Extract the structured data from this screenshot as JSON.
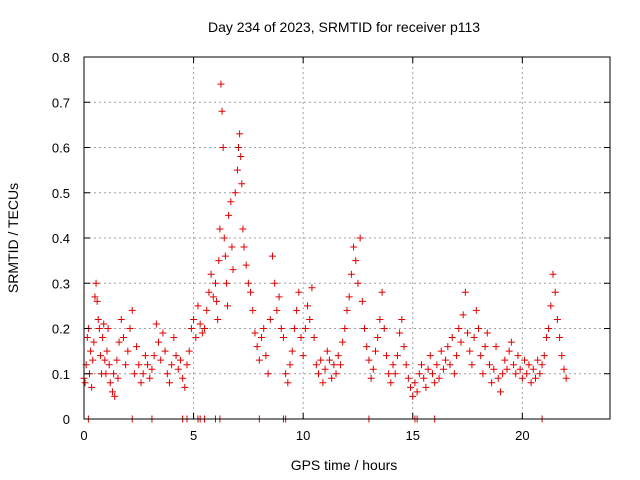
{
  "chart_data": {
    "type": "scatter",
    "title": "Day 234 of 2023, SRMTID for receiver p113",
    "xlabel": "GPS time / hours",
    "ylabel": "SRMTID / TECUs",
    "xlim": [
      0,
      24
    ],
    "ylim": [
      0,
      0.8
    ],
    "xticks": [
      0,
      5,
      10,
      15,
      20
    ],
    "yticks": [
      0,
      0.1,
      0.2,
      0.3,
      0.4,
      0.5,
      0.6,
      0.7,
      0.8
    ],
    "xtick_labels": [
      "0",
      "5",
      "10",
      "15",
      "20"
    ],
    "ytick_labels": [
      "0",
      "0.1",
      "0.2",
      "0.3",
      "0.4",
      "0.5",
      "0.6",
      "0.7",
      "0.8"
    ],
    "grid": true,
    "marker": "+",
    "color": "#e00000",
    "series": [
      {
        "name": "SRMTID",
        "points": [
          [
            0.0,
            0.09
          ],
          [
            0.05,
            0.08
          ],
          [
            0.1,
            0.12
          ],
          [
            0.15,
            0.18
          ],
          [
            0.2,
            0.2
          ],
          [
            0.25,
            0.1
          ],
          [
            0.3,
            0.15
          ],
          [
            0.35,
            0.07
          ],
          [
            0.4,
            0.13
          ],
          [
            0.45,
            0.17
          ],
          [
            0.5,
            0.27
          ],
          [
            0.55,
            0.3
          ],
          [
            0.6,
            0.26
          ],
          [
            0.65,
            0.22
          ],
          [
            0.7,
            0.2
          ],
          [
            0.75,
            0.14
          ],
          [
            0.8,
            0.1
          ],
          [
            0.85,
            0.18
          ],
          [
            0.9,
            0.21
          ],
          [
            0.95,
            0.13
          ],
          [
            1.0,
            0.1
          ],
          [
            1.05,
            0.15
          ],
          [
            1.1,
            0.2
          ],
          [
            1.15,
            0.12
          ],
          [
            1.2,
            0.08
          ],
          [
            1.3,
            0.06
          ],
          [
            1.35,
            0.1
          ],
          [
            1.4,
            0.05
          ],
          [
            1.5,
            0.13
          ],
          [
            1.55,
            0.09
          ],
          [
            1.6,
            0.17
          ],
          [
            1.7,
            0.22
          ],
          [
            1.8,
            0.18
          ],
          [
            1.9,
            0.12
          ],
          [
            2.0,
            0.15
          ],
          [
            2.1,
            0.2
          ],
          [
            2.2,
            0.24
          ],
          [
            2.3,
            0.1
          ],
          [
            2.4,
            0.16
          ],
          [
            2.5,
            0.12
          ],
          [
            2.6,
            0.08
          ],
          [
            2.7,
            0.1
          ],
          [
            2.8,
            0.14
          ],
          [
            2.9,
            0.12
          ],
          [
            3.0,
            0.09
          ],
          [
            3.1,
            0.11
          ],
          [
            3.2,
            0.14
          ],
          [
            3.3,
            0.21
          ],
          [
            3.4,
            0.17
          ],
          [
            3.5,
            0.13
          ],
          [
            3.6,
            0.19
          ],
          [
            3.7,
            0.15
          ],
          [
            3.8,
            0.1
          ],
          [
            3.9,
            0.08
          ],
          [
            4.0,
            0.12
          ],
          [
            4.1,
            0.18
          ],
          [
            4.2,
            0.14
          ],
          [
            4.3,
            0.11
          ],
          [
            4.4,
            0.13
          ],
          [
            4.5,
            0.09
          ],
          [
            4.6,
            0.07
          ],
          [
            4.7,
            0.12
          ],
          [
            4.8,
            0.15
          ],
          [
            4.9,
            0.2
          ],
          [
            5.0,
            0.22
          ],
          [
            5.1,
            0.18
          ],
          [
            5.2,
            0.25
          ],
          [
            5.3,
            0.21
          ],
          [
            5.4,
            0.19
          ],
          [
            5.5,
            0.2
          ],
          [
            5.6,
            0.24
          ],
          [
            5.7,
            0.28
          ],
          [
            5.8,
            0.32
          ],
          [
            5.9,
            0.27
          ],
          [
            6.0,
            0.3
          ],
          [
            6.05,
            0.26
          ],
          [
            6.1,
            0.22
          ],
          [
            6.15,
            0.35
          ],
          [
            6.2,
            0.42
          ],
          [
            6.25,
            0.74
          ],
          [
            6.3,
            0.68
          ],
          [
            6.35,
            0.6
          ],
          [
            6.4,
            0.4
          ],
          [
            6.45,
            0.36
          ],
          [
            6.5,
            0.3
          ],
          [
            6.55,
            0.25
          ],
          [
            6.6,
            0.45
          ],
          [
            6.7,
            0.48
          ],
          [
            6.75,
            0.38
          ],
          [
            6.8,
            0.33
          ],
          [
            6.9,
            0.5
          ],
          [
            7.0,
            0.55
          ],
          [
            7.05,
            0.6
          ],
          [
            7.1,
            0.63
          ],
          [
            7.15,
            0.58
          ],
          [
            7.2,
            0.52
          ],
          [
            7.25,
            0.42
          ],
          [
            7.3,
            0.38
          ],
          [
            7.4,
            0.34
          ],
          [
            7.5,
            0.3
          ],
          [
            7.6,
            0.28
          ],
          [
            7.7,
            0.24
          ],
          [
            7.8,
            0.19
          ],
          [
            7.9,
            0.16
          ],
          [
            8.0,
            0.13
          ],
          [
            8.1,
            0.18
          ],
          [
            8.2,
            0.2
          ],
          [
            8.3,
            0.14
          ],
          [
            8.4,
            0.1
          ],
          [
            8.5,
            0.22
          ],
          [
            8.6,
            0.36
          ],
          [
            8.7,
            0.3
          ],
          [
            8.8,
            0.24
          ],
          [
            8.9,
            0.27
          ],
          [
            9.0,
            0.2
          ],
          [
            9.1,
            0.18
          ],
          [
            9.2,
            0.1
          ],
          [
            9.3,
            0.08
          ],
          [
            9.4,
            0.12
          ],
          [
            9.5,
            0.15
          ],
          [
            9.6,
            0.2
          ],
          [
            9.7,
            0.24
          ],
          [
            9.8,
            0.28
          ],
          [
            9.9,
            0.18
          ],
          [
            10.0,
            0.14
          ],
          [
            10.1,
            0.2
          ],
          [
            10.2,
            0.25
          ],
          [
            10.3,
            0.22
          ],
          [
            10.4,
            0.29
          ],
          [
            10.5,
            0.18
          ],
          [
            10.6,
            0.12
          ],
          [
            10.7,
            0.1
          ],
          [
            10.8,
            0.13
          ],
          [
            10.9,
            0.08
          ],
          [
            11.0,
            0.11
          ],
          [
            11.1,
            0.15
          ],
          [
            11.2,
            0.13
          ],
          [
            11.3,
            0.09
          ],
          [
            11.4,
            0.12
          ],
          [
            11.5,
            0.1
          ],
          [
            11.6,
            0.14
          ],
          [
            11.7,
            0.12
          ],
          [
            11.8,
            0.17
          ],
          [
            11.9,
            0.2
          ],
          [
            12.0,
            0.24
          ],
          [
            12.1,
            0.27
          ],
          [
            12.2,
            0.32
          ],
          [
            12.3,
            0.38
          ],
          [
            12.4,
            0.35
          ],
          [
            12.5,
            0.3
          ],
          [
            12.6,
            0.4
          ],
          [
            12.7,
            0.26
          ],
          [
            12.8,
            0.2
          ],
          [
            12.9,
            0.16
          ],
          [
            13.0,
            0.13
          ],
          [
            13.1,
            0.09
          ],
          [
            13.2,
            0.11
          ],
          [
            13.3,
            0.15
          ],
          [
            13.4,
            0.18
          ],
          [
            13.5,
            0.22
          ],
          [
            13.6,
            0.28
          ],
          [
            13.7,
            0.2
          ],
          [
            13.8,
            0.14
          ],
          [
            13.9,
            0.1
          ],
          [
            14.0,
            0.08
          ],
          [
            14.1,
            0.12
          ],
          [
            14.2,
            0.1
          ],
          [
            14.3,
            0.14
          ],
          [
            14.4,
            0.19
          ],
          [
            14.5,
            0.22
          ],
          [
            14.6,
            0.16
          ],
          [
            14.7,
            0.12
          ],
          [
            14.8,
            0.09
          ],
          [
            14.9,
            0.07
          ],
          [
            15.0,
            0.05
          ],
          [
            15.1,
            0.08
          ],
          [
            15.2,
            0.06
          ],
          [
            15.3,
            0.1
          ],
          [
            15.4,
            0.12
          ],
          [
            15.5,
            0.09
          ],
          [
            15.6,
            0.07
          ],
          [
            15.7,
            0.11
          ],
          [
            15.8,
            0.14
          ],
          [
            15.9,
            0.1
          ],
          [
            16.0,
            0.08
          ],
          [
            16.1,
            0.12
          ],
          [
            16.2,
            0.09
          ],
          [
            16.3,
            0.15
          ],
          [
            16.4,
            0.11
          ],
          [
            16.5,
            0.13
          ],
          [
            16.6,
            0.16
          ],
          [
            16.7,
            0.12
          ],
          [
            16.8,
            0.18
          ],
          [
            16.9,
            0.1
          ],
          [
            17.0,
            0.14
          ],
          [
            17.1,
            0.2
          ],
          [
            17.2,
            0.17
          ],
          [
            17.3,
            0.23
          ],
          [
            17.4,
            0.28
          ],
          [
            17.5,
            0.19
          ],
          [
            17.6,
            0.15
          ],
          [
            17.7,
            0.12
          ],
          [
            17.8,
            0.18
          ],
          [
            17.9,
            0.24
          ],
          [
            18.0,
            0.2
          ],
          [
            18.1,
            0.14
          ],
          [
            18.2,
            0.1
          ],
          [
            18.3,
            0.16
          ],
          [
            18.4,
            0.19
          ],
          [
            18.5,
            0.12
          ],
          [
            18.6,
            0.08
          ],
          [
            18.7,
            0.11
          ],
          [
            18.8,
            0.16
          ],
          [
            18.9,
            0.09
          ],
          [
            19.0,
            0.06
          ],
          [
            19.1,
            0.1
          ],
          [
            19.2,
            0.13
          ],
          [
            19.3,
            0.11
          ],
          [
            19.4,
            0.15
          ],
          [
            19.5,
            0.17
          ],
          [
            19.6,
            0.12
          ],
          [
            19.7,
            0.1
          ],
          [
            19.8,
            0.14
          ],
          [
            19.9,
            0.11
          ],
          [
            20.0,
            0.09
          ],
          [
            20.1,
            0.13
          ],
          [
            20.2,
            0.1
          ],
          [
            20.3,
            0.12
          ],
          [
            20.4,
            0.08
          ],
          [
            20.5,
            0.11
          ],
          [
            20.6,
            0.09
          ],
          [
            20.7,
            0.13
          ],
          [
            20.8,
            0.1
          ],
          [
            20.9,
            0.12
          ],
          [
            21.0,
            0.14
          ],
          [
            21.1,
            0.18
          ],
          [
            21.2,
            0.2
          ],
          [
            21.3,
            0.25
          ],
          [
            21.4,
            0.32
          ],
          [
            21.5,
            0.28
          ],
          [
            21.6,
            0.22
          ],
          [
            21.7,
            0.18
          ],
          [
            21.8,
            0.14
          ],
          [
            21.9,
            0.11
          ],
          [
            22.0,
            0.09
          ],
          [
            0.2,
            0.0
          ],
          [
            2.2,
            0.0
          ],
          [
            3.1,
            0.0
          ],
          [
            4.5,
            0.0
          ],
          [
            4.7,
            0.0
          ],
          [
            5.2,
            0.0
          ],
          [
            5.3,
            0.0
          ],
          [
            5.5,
            0.0
          ],
          [
            6.0,
            0.0
          ],
          [
            6.2,
            0.0
          ],
          [
            8.0,
            0.0
          ],
          [
            9.1,
            0.0
          ],
          [
            9.2,
            0.0
          ],
          [
            13.0,
            0.0
          ],
          [
            15.1,
            0.0
          ],
          [
            15.2,
            0.0
          ],
          [
            16.0,
            0.0
          ],
          [
            20.9,
            0.0
          ]
        ]
      }
    ]
  }
}
